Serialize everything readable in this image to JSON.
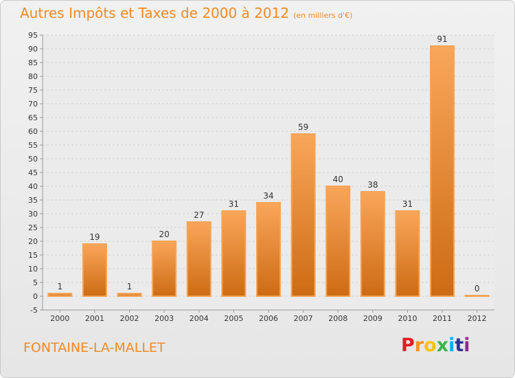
{
  "header": {
    "title": "Autres Impôts et Taxes de 2000 à 2012",
    "unit": "(en milliers d'€)"
  },
  "footer": {
    "place": "FONTAINE-LA-MALLET",
    "brand": "Proxiti"
  },
  "colors": {
    "title": "#f08a24",
    "bar_light": "#f9a65a",
    "bar_dark": "#cd6b13",
    "grid": "#d0d0d0",
    "axis": "#999999",
    "text": "#333333"
  },
  "chart_data": {
    "type": "bar",
    "title": "Autres Impôts et Taxes de 2000 à 2012",
    "subtitle": "(en milliers d'€)",
    "xlabel": "",
    "ylabel": "",
    "categories": [
      "2000",
      "2001",
      "2002",
      "2003",
      "2004",
      "2005",
      "2006",
      "2007",
      "2008",
      "2009",
      "2010",
      "2011",
      "2012"
    ],
    "values": [
      1,
      19,
      1,
      20,
      27,
      31,
      34,
      59,
      40,
      38,
      31,
      91,
      0
    ],
    "ylim": [
      -5,
      95
    ],
    "yticks": [
      -5,
      0,
      5,
      10,
      15,
      20,
      25,
      30,
      35,
      40,
      45,
      50,
      55,
      60,
      65,
      70,
      75,
      80,
      85,
      90,
      95
    ],
    "grid": "horizontal",
    "legend": "none"
  }
}
